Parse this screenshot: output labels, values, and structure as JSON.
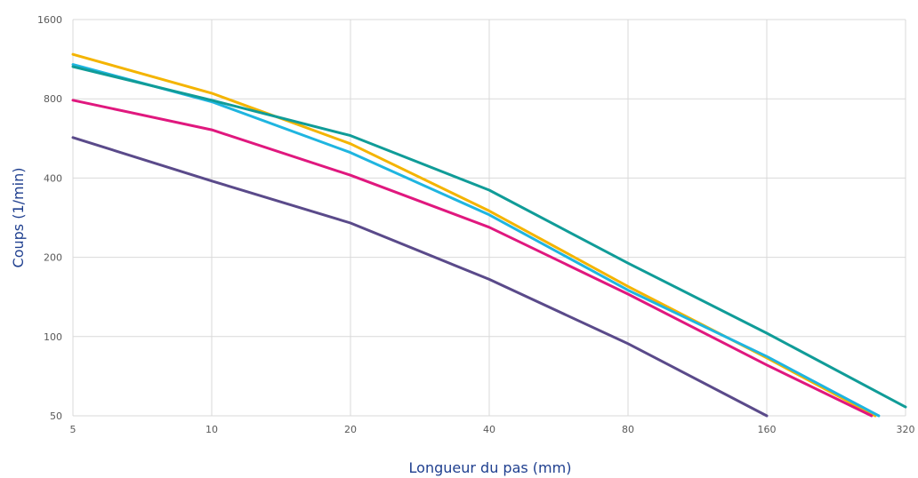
{
  "chart_data": {
    "type": "line",
    "title": "",
    "xlabel": "Longueur du pas (mm)",
    "ylabel": "Coups (1/min)",
    "x_scale": "log2",
    "y_scale": "log2",
    "xlim": [
      5,
      320
    ],
    "ylim": [
      50,
      1600
    ],
    "x_ticks": [
      5,
      10,
      20,
      40,
      80,
      160,
      320
    ],
    "y_ticks": [
      50,
      100,
      200,
      400,
      800,
      1600
    ],
    "x_tick_labels": [
      "5",
      "10",
      "20",
      "40",
      "80",
      "160",
      "320"
    ],
    "y_tick_labels": [
      "50",
      "100",
      "200",
      "400",
      "800",
      "1600"
    ],
    "grid": true,
    "legend": "none",
    "series": [
      {
        "color": "#f4b400",
        "x": [
          5,
          10,
          20,
          40,
          80,
          160,
          275
        ],
        "y": [
          1180,
          840,
          540,
          300,
          155,
          83,
          50
        ]
      },
      {
        "color": "#1fb5e0",
        "x": [
          5,
          10,
          20,
          40,
          80,
          160,
          280
        ],
        "y": [
          1080,
          780,
          500,
          290,
          150,
          84,
          50
        ]
      },
      {
        "color": "#109c98",
        "x": [
          5,
          10,
          20,
          40,
          80,
          160,
          320
        ],
        "y": [
          1060,
          790,
          580,
          360,
          190,
          103,
          54
        ]
      },
      {
        "color": "#e0187e",
        "x": [
          5,
          10,
          20,
          40,
          80,
          160,
          270
        ],
        "y": [
          790,
          610,
          410,
          260,
          145,
          78,
          50
        ]
      },
      {
        "color": "#5a4a8a",
        "x": [
          5,
          10,
          20,
          40,
          80,
          160
        ],
        "y": [
          570,
          390,
          270,
          165,
          94,
          50
        ]
      }
    ]
  }
}
